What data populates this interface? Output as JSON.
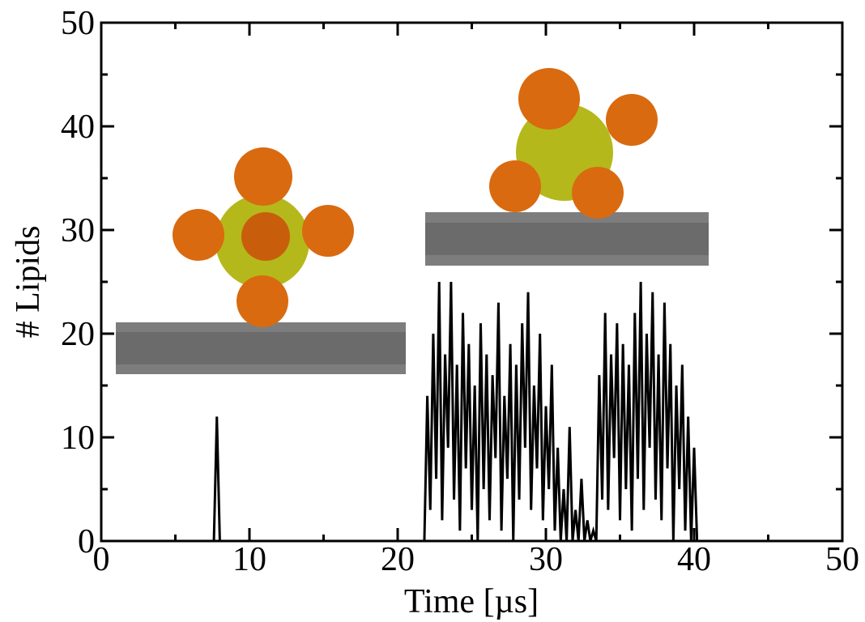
{
  "chart_data": {
    "type": "line",
    "xlabel": "Time [µs]",
    "ylabel": "# Lipids",
    "color": "#000000",
    "xlim": [
      0,
      50
    ],
    "ylim": [
      0,
      50
    ],
    "xticks": [
      0,
      10,
      20,
      30,
      40,
      50
    ],
    "yticks": [
      0,
      10,
      20,
      30,
      40,
      50
    ],
    "x": [
      0,
      7.6,
      7.8,
      8.0,
      21.6,
      21.8,
      22.0,
      22.2,
      22.4,
      22.6,
      22.8,
      23.0,
      23.2,
      23.4,
      23.6,
      23.8,
      24.0,
      24.2,
      24.4,
      24.6,
      24.8,
      25.0,
      25.2,
      25.4,
      25.6,
      25.8,
      26.0,
      26.2,
      26.4,
      26.6,
      26.8,
      27.0,
      27.2,
      27.4,
      27.6,
      27.8,
      28.0,
      28.2,
      28.4,
      28.6,
      28.8,
      29.0,
      29.2,
      29.4,
      29.6,
      29.8,
      30.0,
      30.2,
      30.4,
      30.6,
      30.8,
      31.0,
      31.2,
      31.4,
      31.6,
      31.8,
      32.0,
      32.2,
      32.4,
      32.6,
      32.8,
      33.0,
      33.2,
      33.4,
      33.6,
      33.8,
      34.0,
      34.2,
      34.4,
      34.6,
      34.8,
      35.0,
      35.2,
      35.4,
      35.6,
      35.8,
      36.0,
      36.2,
      36.4,
      36.6,
      36.8,
      37.0,
      37.2,
      37.4,
      37.6,
      37.8,
      38.0,
      38.2,
      38.4,
      38.6,
      38.8,
      39.0,
      39.2,
      39.4,
      39.6,
      39.8,
      40.0,
      40.2,
      40.4
    ],
    "values": [
      0,
      0,
      12,
      0,
      0,
      0,
      14,
      3,
      20,
      6,
      25,
      2,
      18,
      9,
      25,
      4,
      17,
      1,
      22,
      7,
      19,
      3,
      15,
      0,
      21,
      5,
      18,
      2,
      16,
      8,
      23,
      1,
      14,
      6,
      19,
      0,
      17,
      4,
      21,
      9,
      24,
      3,
      15,
      7,
      20,
      2,
      13,
      5,
      17,
      1,
      9,
      0,
      5,
      0,
      11,
      0,
      3,
      0,
      6,
      0,
      2,
      0,
      1,
      0,
      16,
      4,
      22,
      3,
      18,
      8,
      21,
      2,
      19,
      5,
      17,
      1,
      22,
      6,
      25,
      3,
      20,
      9,
      24,
      4,
      18,
      2,
      23,
      7,
      19,
      0,
      15,
      5,
      17,
      1,
      12,
      0,
      9,
      0,
      0
    ]
  }
}
